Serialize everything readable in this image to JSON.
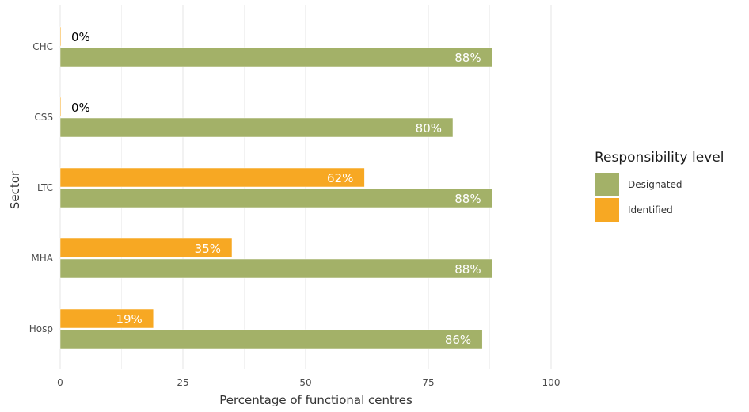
{
  "chart_data": {
    "type": "bar",
    "orientation": "horizontal",
    "categories": [
      "CHC",
      "CSS",
      "LTC",
      "MHA",
      "Hosp"
    ],
    "series": [
      {
        "name": "Identified",
        "color": "#F7A823",
        "values": [
          0,
          0,
          62,
          35,
          19
        ],
        "labels": [
          "0%",
          "0%",
          "62%",
          "35%",
          "19%"
        ]
      },
      {
        "name": "Designated",
        "color": "#A3B168",
        "values": [
          88,
          80,
          88,
          88,
          86
        ],
        "labels": [
          "88%",
          "80%",
          "88%",
          "88%",
          "86%"
        ]
      }
    ],
    "xlabel": "Percentage of functional centres",
    "ylabel": "Sector",
    "xlim": [
      0,
      100
    ],
    "xticks": [
      0,
      25,
      50,
      75,
      100
    ],
    "grid": true,
    "legend_position": "right"
  },
  "legend": {
    "title": "Responsibility level",
    "items": [
      {
        "label": "Designated",
        "color": "#A3B168"
      },
      {
        "label": "Identified",
        "color": "#F7A823"
      }
    ]
  }
}
